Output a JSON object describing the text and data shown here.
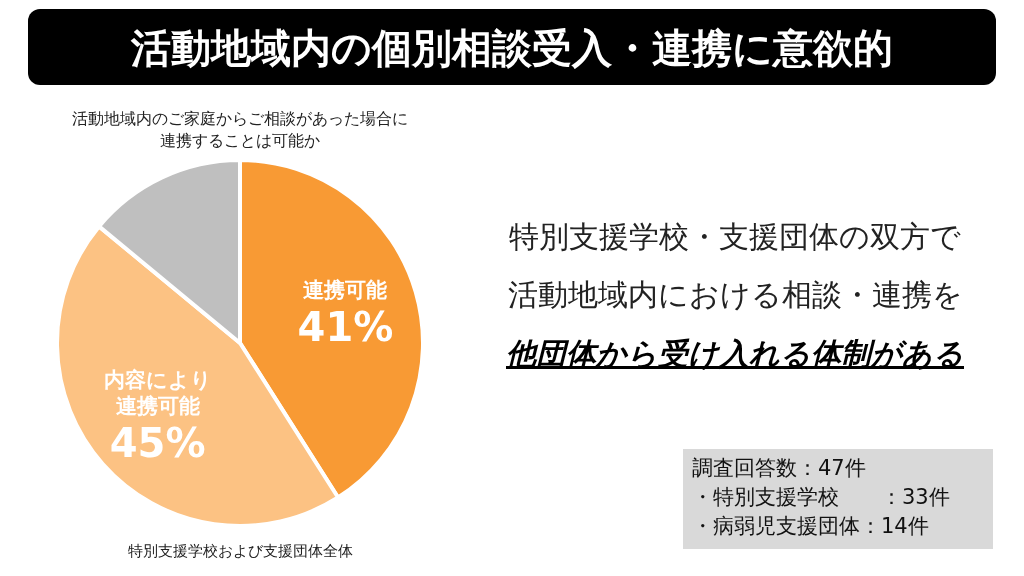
{
  "chart_data": {
    "type": "pie",
    "title": "活動地域内の個別相談受入・連携に意欲的",
    "subtitle": "活動地域内のご家庭からご相談があった場合に連携することは可能か",
    "categories": [
      "連携可能",
      "内容により連携可能",
      null
    ],
    "values": [
      41,
      45,
      14
    ],
    "value_labels": [
      "41%",
      "45%",
      null
    ],
    "colors": [
      "#f89a34",
      "#fcc283",
      "#bfbfbf"
    ],
    "annotations": [
      "特別支援学校および支援団体全体",
      "特別支援学校・支援団体の双方で",
      "活動地域内における相談・連携を",
      "他団体から受け入れる体制がある",
      "調査回答数：47件",
      "・特別支援学校　　：33件",
      "・病弱児支援団体：14件"
    ]
  }
}
